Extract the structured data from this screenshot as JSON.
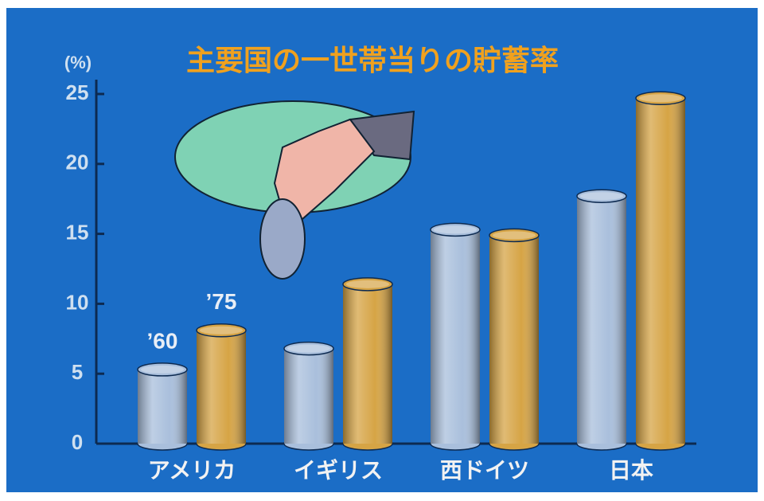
{
  "chart_data": {
    "type": "bar",
    "title": "主要国の一世帯当りの貯蓄率",
    "y_label": "(%)",
    "categories": [
      "アメリカ",
      "イギリス",
      "西ドイツ",
      "日本"
    ],
    "series": [
      {
        "name": "’60",
        "color": "#a9bfdc",
        "values": [
          5.3,
          6.8,
          15.3,
          17.7
        ]
      },
      {
        "name": "’75",
        "color": "#d6a445",
        "values": [
          8.1,
          11.4,
          14.9,
          24.7
        ]
      }
    ],
    "ylim": [
      0,
      25
    ],
    "yticks": [
      0,
      5,
      10,
      15,
      20,
      25
    ]
  }
}
